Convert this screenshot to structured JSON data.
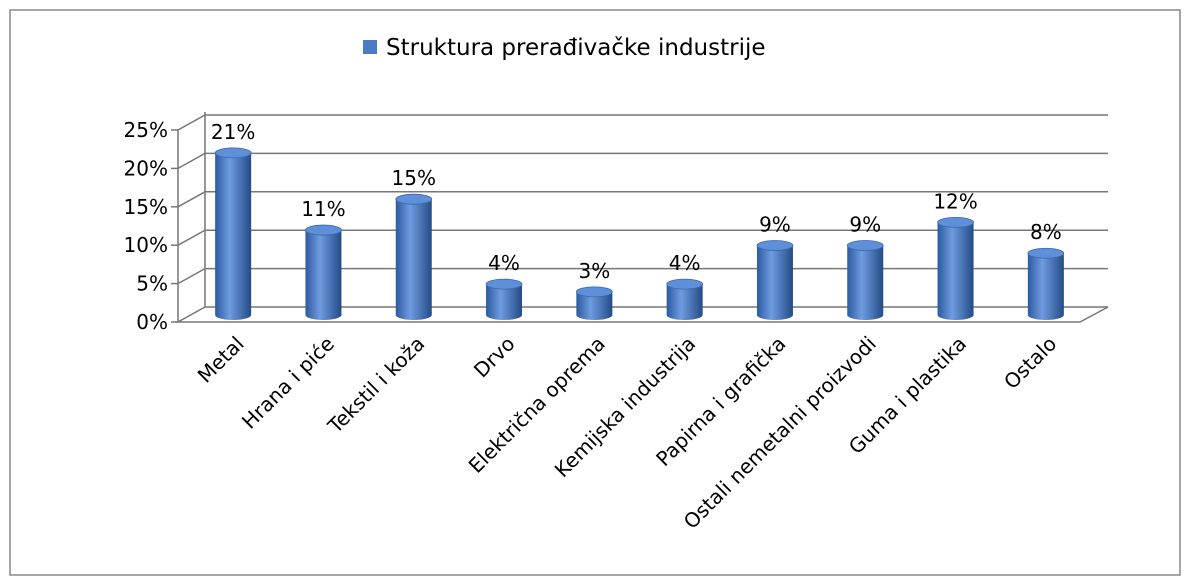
{
  "chart_data": {
    "type": "bar",
    "categories": [
      "Metal",
      "Hrana i piće",
      "Tekstil i koža",
      "Drvo",
      "Električna oprema",
      "Kemijska industrija",
      "Papirna i grafička",
      "Ostali nemetalni proizvodi",
      "Guma i plastika",
      "Ostalo"
    ],
    "series": [
      {
        "name": "Struktura prerađivačke industrije",
        "color": "#4a7bc4",
        "values": [
          21,
          11,
          15,
          4,
          3,
          4,
          9,
          9,
          12,
          8
        ],
        "value_labels": [
          "21%",
          "11%",
          "15%",
          "4%",
          "3%",
          "4%",
          "9%",
          "9%",
          "12%",
          "8%"
        ]
      }
    ],
    "ylim": [
      0,
      25
    ],
    "yticks": [
      {
        "value": 0,
        "label": "0%"
      },
      {
        "value": 5,
        "label": "5%"
      },
      {
        "value": 10,
        "label": "10%"
      },
      {
        "value": 15,
        "label": "15%"
      },
      {
        "value": 20,
        "label": "20%"
      },
      {
        "value": 25,
        "label": "25%"
      }
    ],
    "grid": true,
    "legend": "top"
  }
}
